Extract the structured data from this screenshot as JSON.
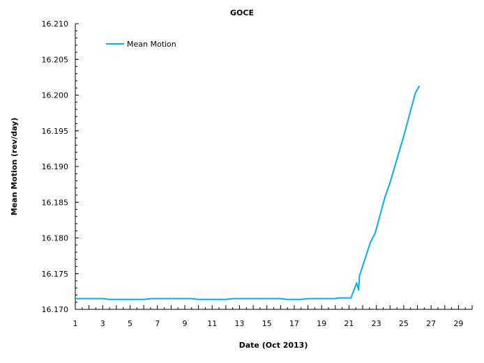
{
  "chart_data": {
    "type": "line",
    "title": "GOCE",
    "xlabel": "Date (Oct 2013)",
    "ylabel": "Mean Motion (rev/day)",
    "xlim": [
      1,
      30
    ],
    "ylim": [
      16.17,
      16.21
    ],
    "xticks": [
      1,
      3,
      5,
      7,
      9,
      11,
      13,
      15,
      17,
      19,
      21,
      23,
      25,
      27,
      29
    ],
    "yticks": [
      "16.170",
      "16.175",
      "16.180",
      "16.185",
      "16.190",
      "16.195",
      "16.200",
      "16.205",
      "16.210"
    ],
    "grid": false,
    "legend_position": "top-left",
    "series": [
      {
        "name": "Mean Motion",
        "color": "#00b0f0",
        "x": [
          1,
          2,
          3,
          3.5,
          4,
          5,
          6,
          6.5,
          7,
          8,
          9,
          9.5,
          10,
          11,
          12,
          12.5,
          13,
          14,
          15,
          16,
          16.5,
          17,
          17.5,
          18,
          19,
          20,
          20.2,
          21,
          21.14,
          21.56,
          21.71,
          21.77,
          22.57,
          22.92,
          23.64,
          23.98,
          25.08,
          25.85,
          26.15
        ],
        "y": [
          16.1715,
          16.1715,
          16.1715,
          16.1714,
          16.1714,
          16.1714,
          16.1714,
          16.1715,
          16.1715,
          16.1715,
          16.1715,
          16.1715,
          16.1714,
          16.1714,
          16.1714,
          16.1715,
          16.1715,
          16.1715,
          16.1715,
          16.1715,
          16.1714,
          16.1714,
          16.1714,
          16.1715,
          16.1715,
          16.1715,
          16.1716,
          16.1716,
          16.1716,
          16.1737,
          16.1727,
          16.1747,
          16.1794,
          16.1807,
          16.1858,
          16.1876,
          16.1948,
          16.2003,
          16.2013
        ]
      }
    ]
  }
}
